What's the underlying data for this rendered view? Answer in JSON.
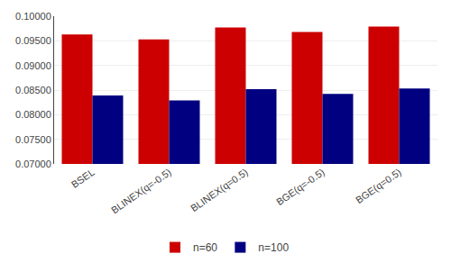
{
  "chart_data": {
    "type": "bar",
    "categories": [
      "BSEL",
      "BLINEX(q=-0.5)",
      "BLINEX(q=0.5)",
      "BGE(q=-0.5)",
      "BGE(q=0.5)"
    ],
    "series": [
      {
        "name": "n=60",
        "color": "#CC0000",
        "values": [
          0.0963,
          0.0953,
          0.0977,
          0.0968,
          0.0979
        ]
      },
      {
        "name": "n=100",
        "color": "#000080",
        "values": [
          0.0839,
          0.0829,
          0.0852,
          0.0842,
          0.0853
        ]
      }
    ],
    "ylim": [
      0.07,
      0.1
    ],
    "yticks": [
      {
        "value": 0.07,
        "label": "0.07000"
      },
      {
        "value": 0.075,
        "label": "0.07500"
      },
      {
        "value": 0.08,
        "label": "0.08000"
      },
      {
        "value": 0.085,
        "label": "0.08500"
      },
      {
        "value": 0.09,
        "label": "0.09000"
      },
      {
        "value": 0.095,
        "label": "0.09500"
      },
      {
        "value": 0.1,
        "label": "0.10000"
      }
    ],
    "grid": true,
    "legend": "bottom"
  }
}
